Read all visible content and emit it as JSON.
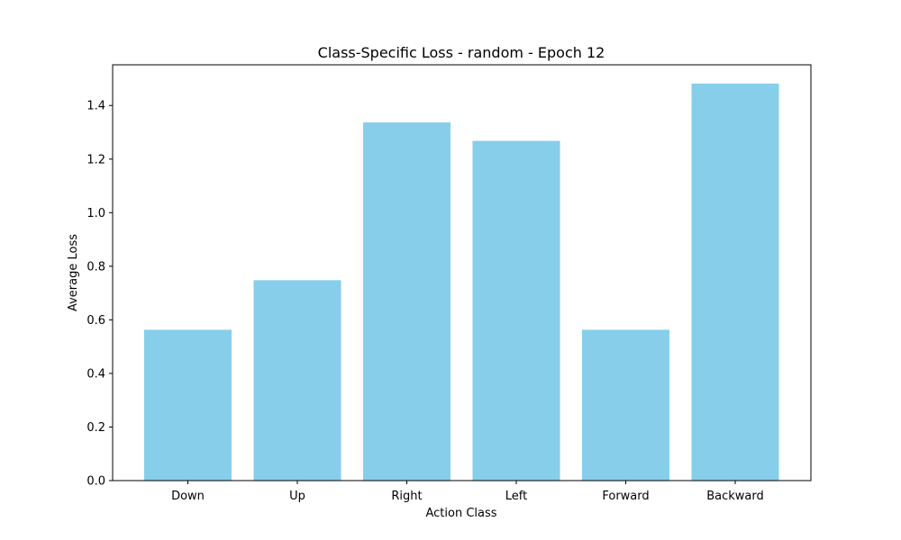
{
  "chart_data": {
    "type": "bar",
    "title": "Class-Specific Loss - random - Epoch 12",
    "xlabel": "Action Class",
    "ylabel": "Average Loss",
    "categories": [
      "Down",
      "Up",
      "Right",
      "Left",
      "Forward",
      "Backward"
    ],
    "values": [
      0.563,
      0.748,
      1.337,
      1.268,
      0.563,
      1.482
    ],
    "ylim": [
      0,
      1.552
    ],
    "yticks": [
      "0.0",
      "0.2",
      "0.4",
      "0.6",
      "0.8",
      "1.0",
      "1.2",
      "1.4"
    ],
    "bar_color": "#87ceeb",
    "grid": false,
    "legend": "none"
  }
}
